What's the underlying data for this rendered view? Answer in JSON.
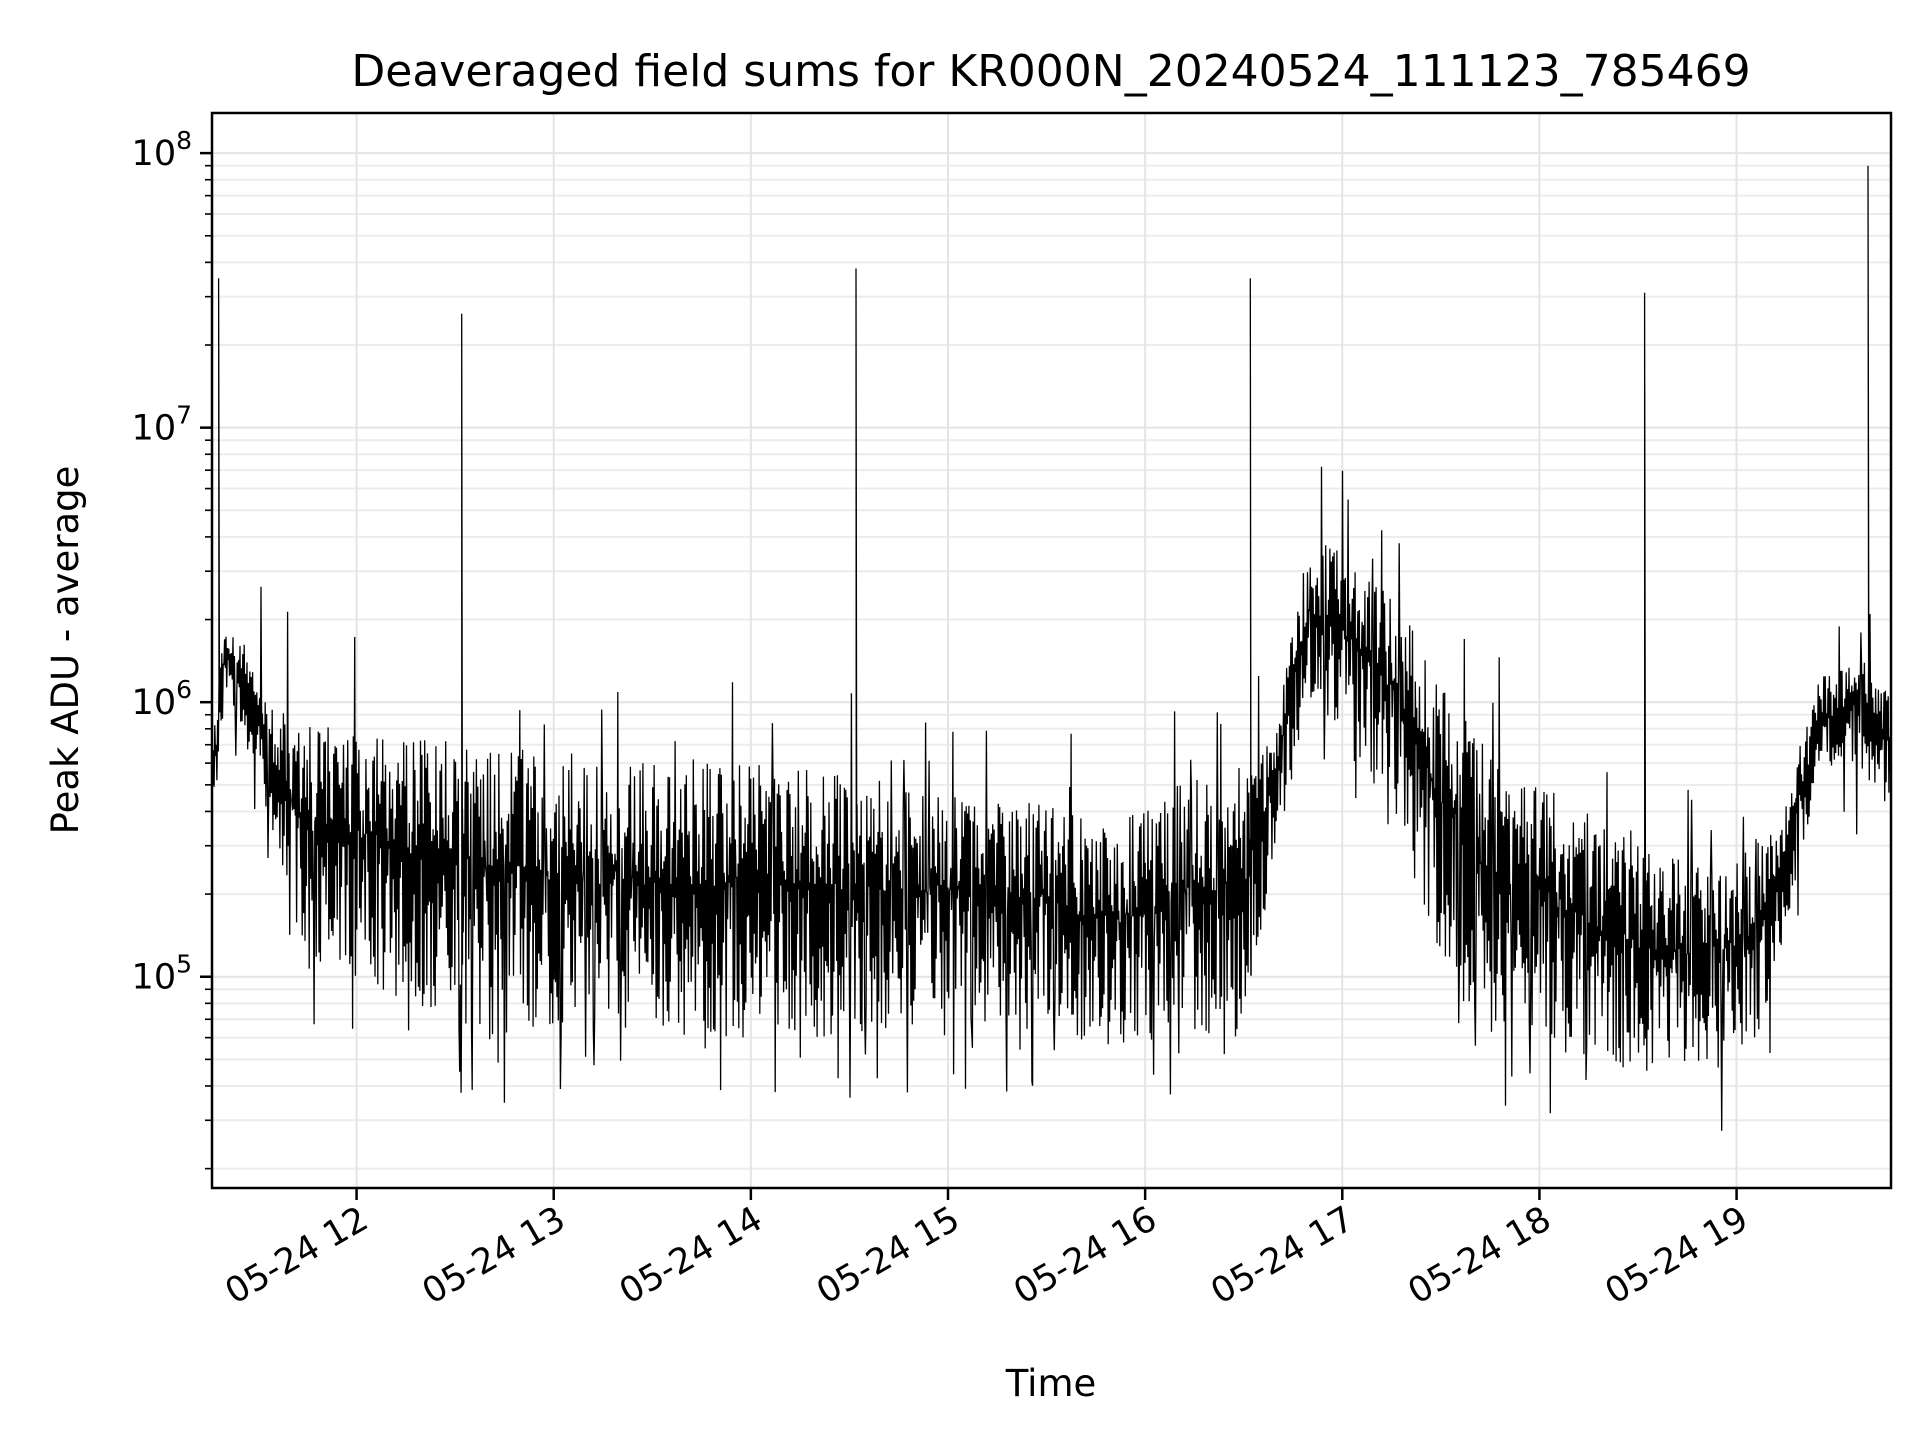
{
  "chart_data": {
    "type": "line",
    "title": "Deaveraged field sums for KR000N_20240524_111123_785469",
    "xlabel": "Time",
    "ylabel": "Peak ADU - average",
    "yscale": "log",
    "ylim": [
      17000,
      140000000
    ],
    "xlim": [
      "2024-05-24T11:16:00",
      "2024-05-24T19:47:00"
    ],
    "grid": true,
    "x_ticks": [
      {
        "value": "2024-05-24T12:00:00",
        "label": "05-24 12"
      },
      {
        "value": "2024-05-24T13:00:00",
        "label": "05-24 13"
      },
      {
        "value": "2024-05-24T14:00:00",
        "label": "05-24 14"
      },
      {
        "value": "2024-05-24T15:00:00",
        "label": "05-24 15"
      },
      {
        "value": "2024-05-24T16:00:00",
        "label": "05-24 16"
      },
      {
        "value": "2024-05-24T17:00:00",
        "label": "05-24 17"
      },
      {
        "value": "2024-05-24T18:00:00",
        "label": "05-24 18"
      },
      {
        "value": "2024-05-24T19:00:00",
        "label": "05-24 19"
      }
    ],
    "y_ticks": [
      {
        "value": 100000,
        "base": "10",
        "exp": "5"
      },
      {
        "value": 1000000,
        "base": "10",
        "exp": "6"
      },
      {
        "value": 10000000,
        "base": "10",
        "exp": "7"
      },
      {
        "value": 100000000,
        "base": "10",
        "exp": "8"
      }
    ],
    "envelope": {
      "x": [
        "2024-05-24T11:16:00",
        "2024-05-24T11:20:00",
        "2024-05-24T11:25:00",
        "2024-05-24T11:35:00",
        "2024-05-24T11:45:00",
        "2024-05-24T12:00:00",
        "2024-05-24T12:20:00",
        "2024-05-24T12:40:00",
        "2024-05-24T13:00:00",
        "2024-05-24T13:30:00",
        "2024-05-24T14:00:00",
        "2024-05-24T14:30:00",
        "2024-05-24T15:00:00",
        "2024-05-24T15:30:00",
        "2024-05-24T15:50:00",
        "2024-05-24T16:10:00",
        "2024-05-24T16:30:00",
        "2024-05-24T16:40:00",
        "2024-05-24T16:50:00",
        "2024-05-24T17:00:00",
        "2024-05-24T17:15:00",
        "2024-05-24T17:30:00",
        "2024-05-24T17:45:00",
        "2024-05-24T18:00:00",
        "2024-05-24T18:15:00",
        "2024-05-24T18:30:00",
        "2024-05-24T18:50:00",
        "2024-05-24T19:05:00",
        "2024-05-24T19:15:00",
        "2024-05-24T19:25:00",
        "2024-05-24T19:35:00",
        "2024-05-24T19:47:00"
      ],
      "upper": [
        700000,
        2000000,
        1800000,
        1000000,
        900000,
        800000,
        750000,
        700000,
        650000,
        600000,
        600000,
        550000,
        450000,
        450000,
        350000,
        500000,
        600000,
        900000,
        4000000,
        3500000,
        2500000,
        1200000,
        700000,
        500000,
        400000,
        300000,
        250000,
        300000,
        500000,
        1200000,
        1500000,
        1200000
      ],
      "lower": [
        300000,
        1100000,
        800000,
        300000,
        100000,
        100000,
        70000,
        60000,
        60000,
        60000,
        60000,
        60000,
        70000,
        60000,
        55000,
        60000,
        60000,
        300000,
        1000000,
        700000,
        400000,
        120000,
        60000,
        60000,
        45000,
        45000,
        45000,
        50000,
        150000,
        500000,
        600000,
        400000
      ]
    },
    "spikes": [
      {
        "x": "2024-05-24T11:18:00",
        "y": 35000000
      },
      {
        "x": "2024-05-24T12:32:00",
        "y": 26000000
      },
      {
        "x": "2024-05-24T14:32:00",
        "y": 38000000
      },
      {
        "x": "2024-05-24T16:32:00",
        "y": 35000000
      },
      {
        "x": "2024-05-24T18:32:00",
        "y": 31000000
      },
      {
        "x": "2024-05-24T19:40:00",
        "y": 90000000
      }
    ]
  }
}
